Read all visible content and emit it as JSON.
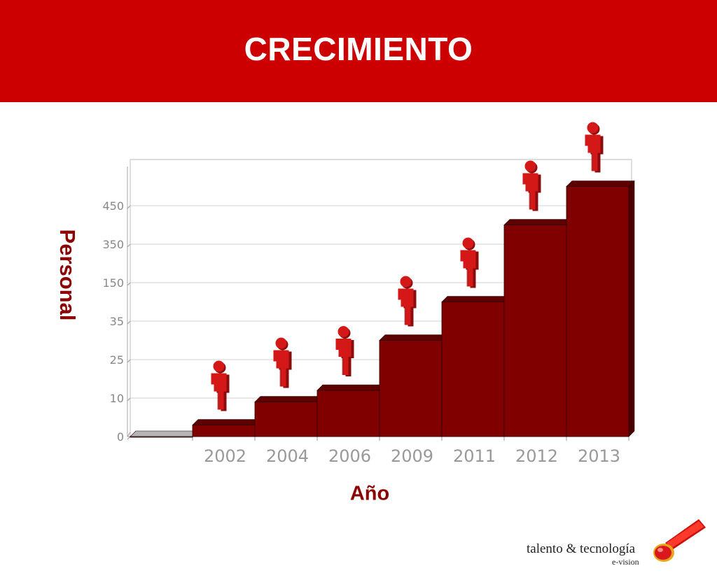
{
  "header": {
    "title": "CRECIMIENTO"
  },
  "chart_data": {
    "type": "bar",
    "title": "",
    "xlabel": "Año",
    "ylabel": "Personal",
    "y_ticks": [
      "0",
      "10",
      "25",
      "35",
      "150",
      "350",
      "450"
    ],
    "categories": [
      "",
      "2002",
      "2004",
      "2006",
      "2009",
      "2011",
      "2012",
      "2013"
    ],
    "values": [
      0,
      0.3,
      0.9,
      1.2,
      2.5,
      3.5,
      5.5,
      6.5
    ],
    "bar_color": "#800000",
    "first_bar_color": "#999999",
    "grid": true,
    "legend": "none",
    "person_icon_color": "#cc1111"
  },
  "logo": {
    "line1": "talento & tecnología",
    "line2": "e-vision"
  }
}
